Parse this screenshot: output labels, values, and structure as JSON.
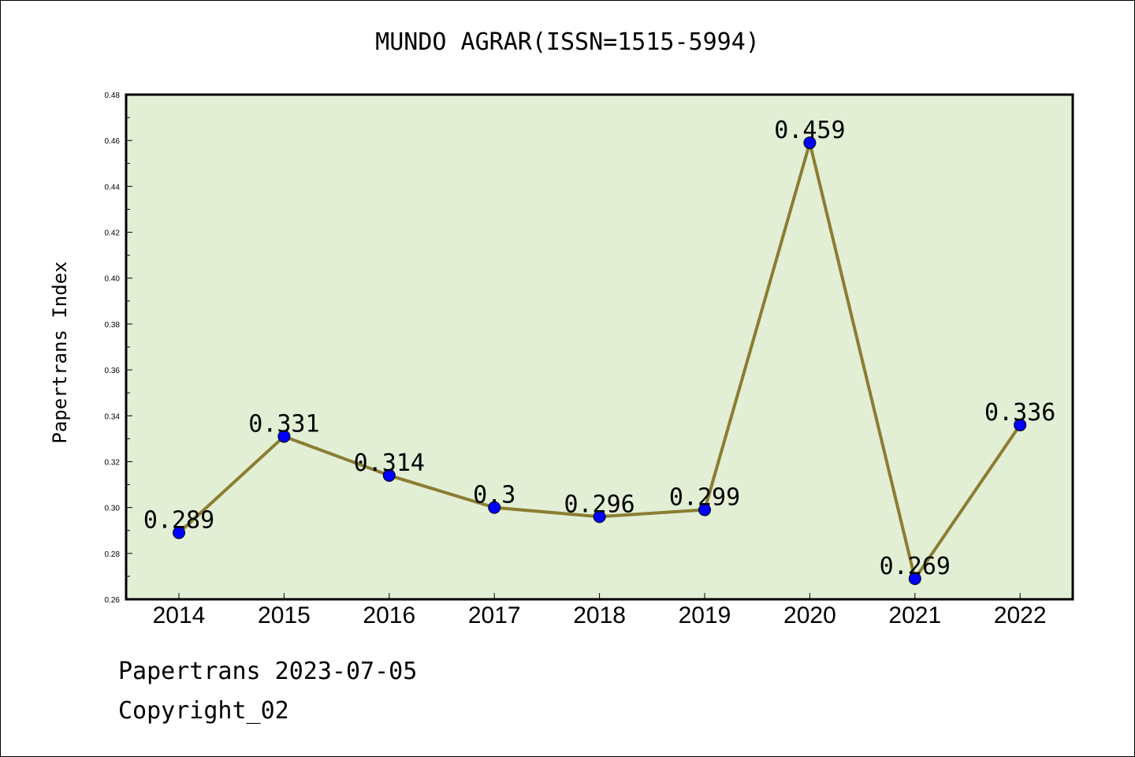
{
  "title": "MUNDO AGRAR(ISSN=1515-5994)",
  "footer": {
    "line1": "Papertrans 2023-07-05",
    "line2": "Copyright_02"
  },
  "colors": {
    "plot_bg": "#e2efd5",
    "line": "#8b7d32",
    "marker": "#0000ff"
  },
  "chart_data": {
    "type": "line",
    "title": "MUNDO AGRAR(ISSN=1515-5994)",
    "xlabel": "",
    "ylabel": "Papertrans Index",
    "categories": [
      "2014",
      "2015",
      "2016",
      "2017",
      "2018",
      "2019",
      "2020",
      "2021",
      "2022"
    ],
    "series": [
      {
        "values": [
          0.289,
          0.331,
          0.314,
          0.3,
          0.296,
          0.299,
          0.459,
          0.269,
          0.336
        ],
        "labels": [
          "0.289",
          "0.331",
          "0.314",
          "0.3",
          "0.296",
          "0.299",
          "0.459",
          "0.269",
          "0.336"
        ]
      }
    ],
    "ylim": [
      0.26,
      0.48
    ],
    "yticks": [
      "0.26",
      "0.28",
      "0.30",
      "0.32",
      "0.34",
      "0.36",
      "0.38",
      "0.40",
      "0.42",
      "0.44",
      "0.46",
      "0.48"
    ],
    "grid": false,
    "legend": "none"
  }
}
